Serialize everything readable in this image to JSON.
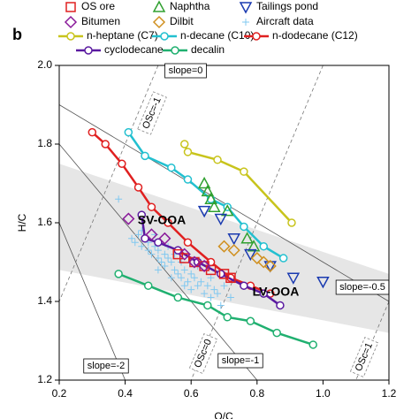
{
  "chart_data": {
    "type": "scatter",
    "panel_label": "b",
    "xlabel": "O/C",
    "ylabel": "H/C",
    "xlim": [
      0.2,
      1.2
    ],
    "ylim": [
      1.2,
      2.0
    ],
    "xticks": [
      0.2,
      0.4,
      0.6,
      0.8,
      {
        "value": 1.0,
        "label": "1.0"
      },
      1.2
    ],
    "yticks": [
      {
        "value": 2.0,
        "label": "2.0"
      },
      1.8,
      1.6,
      1.4,
      1.2
    ],
    "shaded_region": {
      "x": [
        0.2,
        1.2
      ],
      "upper": [
        1.75,
        1.47
      ],
      "lower": [
        1.48,
        1.32
      ],
      "color": "#e6e6e6"
    },
    "slope_lines": [
      {
        "label": "slope=0",
        "x": [
          0.2,
          1.2
        ],
        "y": [
          2.0,
          2.0
        ]
      },
      {
        "label": "slope=-0.5",
        "x": [
          0.2,
          1.2
        ],
        "y": [
          1.9,
          1.4
        ]
      },
      {
        "label": "slope=-1",
        "x": [
          0.2,
          0.8
        ],
        "y": [
          1.8,
          1.2
        ]
      },
      {
        "label": "slope=-2",
        "x": [
          0.2,
          0.4
        ],
        "y": [
          1.6,
          1.2
        ]
      }
    ],
    "osc_lines": [
      {
        "label": "OSc=-1",
        "x": [
          0.5,
          0.2
        ],
        "y": [
          2.0,
          1.4
        ]
      },
      {
        "label": "OSc=0",
        "x": [
          1.0,
          0.6
        ],
        "y": [
          2.0,
          1.2
        ]
      },
      {
        "label": "OSc=1",
        "x": [
          1.2,
          1.1
        ],
        "y": [
          1.4,
          1.2
        ]
      }
    ],
    "annotations": [
      {
        "text": "SV-OOA",
        "color": "#1a9a1a"
      },
      {
        "text": "LV-OOA",
        "color": "#000000"
      }
    ],
    "series": [
      {
        "name": "OS ore",
        "color": "#e02020",
        "marker": "square",
        "line": false,
        "x": [
          0.56,
          0.58,
          0.61,
          0.64,
          0.66,
          0.7,
          0.72
        ],
        "y": [
          1.52,
          1.51,
          1.5,
          1.49,
          1.48,
          1.47,
          1.46
        ]
      },
      {
        "name": "Naphtha",
        "color": "#30a030",
        "marker": "triangle",
        "line": false,
        "x": [
          0.64,
          0.65,
          0.66,
          0.67,
          0.71,
          0.77,
          0.79
        ],
        "y": [
          1.7,
          1.68,
          1.66,
          1.64,
          1.63,
          1.56,
          1.54
        ]
      },
      {
        "name": "Tailings pond",
        "color": "#1a3ab0",
        "marker": "triangle-down",
        "line": false,
        "x": [
          0.64,
          0.69,
          0.73,
          0.78,
          0.84,
          0.91,
          1.0
        ],
        "y": [
          1.63,
          1.61,
          1.56,
          1.52,
          1.49,
          1.46,
          1.45
        ]
      },
      {
        "name": "Bitumen",
        "color": "#8a1a9a",
        "marker": "diamond",
        "line": false,
        "x": [
          0.41,
          0.48,
          0.52,
          0.58,
          0.61,
          0.64
        ],
        "y": [
          1.61,
          1.57,
          1.56,
          1.52,
          1.5,
          1.49
        ]
      },
      {
        "name": "Dilbit",
        "color": "#d09020",
        "marker": "diamond",
        "line": false,
        "x": [
          0.7,
          0.73,
          0.8,
          0.82,
          0.84
        ],
        "y": [
          1.54,
          1.53,
          1.51,
          1.5,
          1.49
        ]
      },
      {
        "name": "Aircraft data",
        "color": "#80c8f0",
        "marker": "plus",
        "line": false,
        "x": [
          0.42,
          0.43,
          0.44,
          0.45,
          0.46,
          0.47,
          0.47,
          0.48,
          0.49,
          0.5,
          0.5,
          0.51,
          0.52,
          0.52,
          0.53,
          0.54,
          0.55,
          0.55,
          0.56,
          0.57,
          0.57,
          0.58,
          0.59,
          0.6,
          0.6,
          0.61,
          0.62,
          0.63,
          0.64,
          0.65,
          0.66,
          0.67,
          0.68,
          0.7,
          0.72,
          0.45,
          0.49,
          0.53,
          0.58,
          0.62,
          0.38,
          0.66,
          0.69,
          0.54,
          0.5
        ],
        "y": [
          1.56,
          1.55,
          1.57,
          1.54,
          1.56,
          1.53,
          1.55,
          1.52,
          1.54,
          1.51,
          1.53,
          1.5,
          1.52,
          1.49,
          1.51,
          1.5,
          1.48,
          1.52,
          1.47,
          1.5,
          1.46,
          1.48,
          1.45,
          1.47,
          1.43,
          1.46,
          1.44,
          1.45,
          1.42,
          1.44,
          1.41,
          1.43,
          1.42,
          1.44,
          1.41,
          1.58,
          1.57,
          1.54,
          1.44,
          1.49,
          1.66,
          1.46,
          1.39,
          1.46,
          1.48
        ]
      },
      {
        "name": "n-heptane (C7)",
        "color": "#c8c41c",
        "marker": "circle",
        "line": true,
        "x": [
          0.58,
          0.59,
          0.68,
          0.76,
          0.905
        ],
        "y": [
          1.8,
          1.78,
          1.76,
          1.73,
          1.6
        ]
      },
      {
        "name": "n-decane (C10)",
        "color": "#22c0d0",
        "marker": "circle",
        "line": true,
        "x": [
          0.41,
          0.46,
          0.54,
          0.59,
          0.66,
          0.71,
          0.76,
          0.82,
          0.88
        ],
        "y": [
          1.83,
          1.77,
          1.74,
          1.71,
          1.66,
          1.64,
          1.59,
          1.54,
          1.51
        ]
      },
      {
        "name": "n-dodecane (C12)",
        "color": "#e02020",
        "marker": "circle",
        "line": true,
        "x": [
          0.3,
          0.34,
          0.39,
          0.44,
          0.48,
          0.53,
          0.59,
          0.66,
          0.72,
          0.78,
          0.84
        ],
        "y": [
          1.83,
          1.8,
          1.75,
          1.69,
          1.64,
          1.6,
          1.55,
          1.5,
          1.46,
          1.44,
          1.42
        ]
      },
      {
        "name": "cyclodecane",
        "color": "#5a1aa0",
        "marker": "circle",
        "line": true,
        "x": [
          0.45,
          0.46,
          0.5,
          0.56,
          0.62,
          0.69,
          0.76,
          0.82,
          0.87
        ],
        "y": [
          1.62,
          1.56,
          1.55,
          1.53,
          1.5,
          1.47,
          1.44,
          1.42,
          1.39
        ]
      },
      {
        "name": "decalin",
        "color": "#20b070",
        "marker": "circle",
        "line": true,
        "x": [
          0.38,
          0.47,
          0.56,
          0.65,
          0.71,
          0.78,
          0.86,
          0.97
        ],
        "y": [
          1.47,
          1.44,
          1.41,
          1.39,
          1.36,
          1.35,
          1.32,
          1.29
        ]
      }
    ]
  }
}
